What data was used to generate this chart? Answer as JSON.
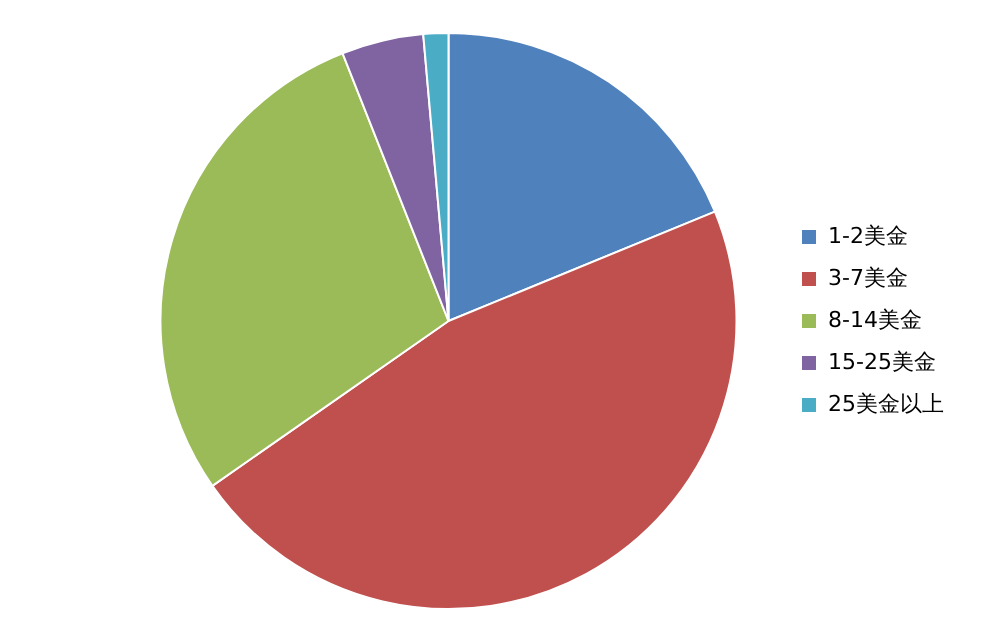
{
  "chart_data": {
    "type": "pie",
    "categories": [
      "1-2美金",
      "3-7美金",
      "8-14美金",
      "15-25美金",
      "25美金以上"
    ],
    "values": [
      18.8,
      46.5,
      28.7,
      4.6,
      1.4
    ],
    "colors": [
      "#4f81bd",
      "#c0504d",
      "#9bbb59",
      "#8064a2",
      "#4bacc6"
    ],
    "legend": "right"
  }
}
